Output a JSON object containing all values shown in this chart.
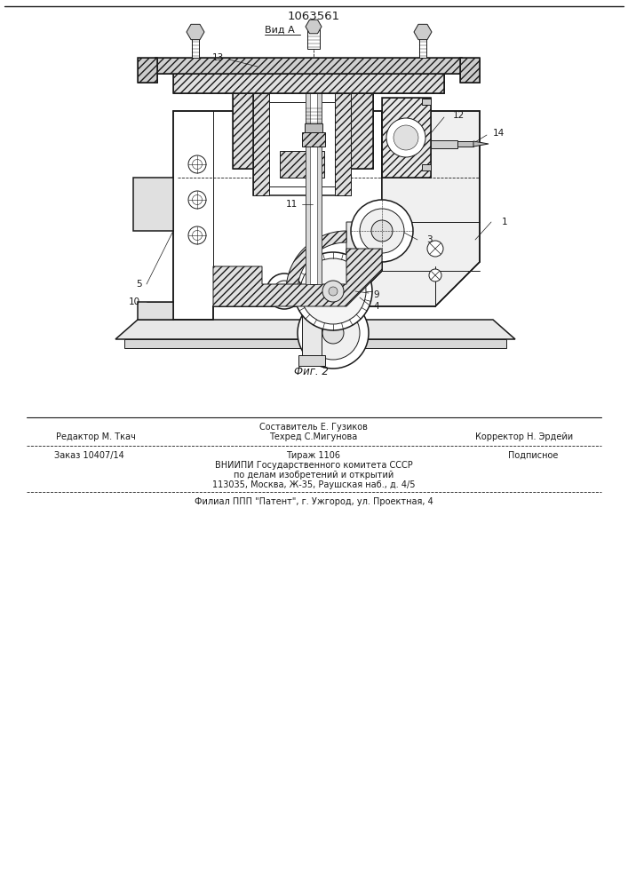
{
  "patent_number": "1063561",
  "view_label": "Вид А",
  "fig_label": "Фиг. 2",
  "editor_line": "Редактор М. Ткач",
  "composer_line1": "Составитель Е. Гузиков",
  "techred_line": "Техред С.Мигунова",
  "corrector_line": "Корректор Н. Эрдейи",
  "order_line": "Заказ 10407/14",
  "tirazh_line": "Тираж 1106",
  "podpisnoe_line": "Подписное",
  "vniip_line1": "ВНИИПИ Государственного комитета СССР",
  "vniip_line2": "по делам изобретений и открытий",
  "vniip_line3": "113035, Москва, Ж-35, Раушская наб., д. 4/5",
  "filial_line": "Филиал ППП \"Патент\", г. Ужгород, ул. Проектная, 4",
  "bg_color": "#ffffff",
  "line_color": "#1a1a1a"
}
